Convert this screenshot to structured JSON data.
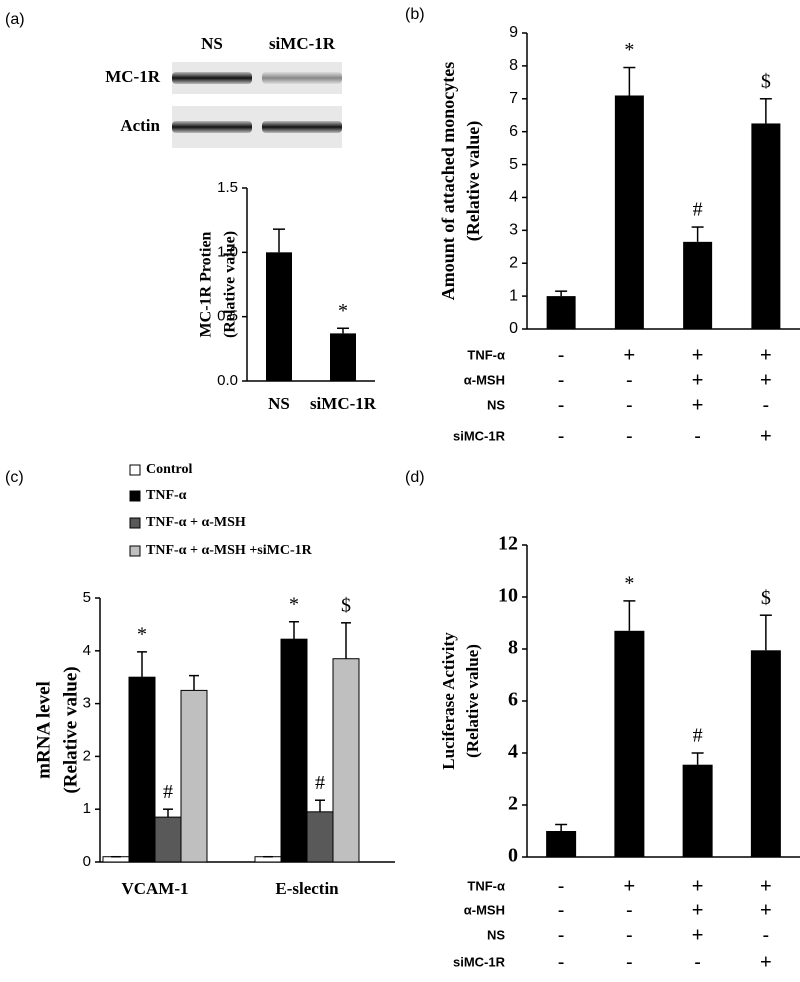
{
  "chart_data": [
    {
      "type": "bar",
      "panel_label": "(a)",
      "blot": {
        "lanes": [
          "NS",
          "siMC-1R"
        ],
        "bands": [
          "MC-1R",
          "Actin"
        ]
      },
      "y_label": [
        "MC-1R Protien",
        "(Relative value)"
      ],
      "categories": [
        "NS",
        "siMC-1R"
      ],
      "values": [
        1.0,
        0.37
      ],
      "errors": [
        0.18,
        0.04
      ],
      "annotations": [
        null,
        "*"
      ],
      "color": "#000000",
      "ylim": [
        0,
        1.5
      ],
      "yticks": [
        {
          "value": 0,
          "label": "0.0"
        },
        {
          "value": 0.5,
          "label": "0.5"
        },
        {
          "value": 1,
          "label": "1.0"
        },
        {
          "value": 1.5,
          "label": "1.5"
        }
      ]
    },
    {
      "type": "bar",
      "panel_label": "(b)",
      "y_label": [
        "Amount of attached monocytes",
        "(Relative value)"
      ],
      "values": [
        1.0,
        7.1,
        2.65,
        6.25
      ],
      "errors": [
        0.15,
        0.85,
        0.45,
        0.75
      ],
      "annotations": [
        null,
        "*",
        "#",
        "$"
      ],
      "conditions": [
        {
          "name": "TNF-α",
          "values": [
            "-",
            "+",
            "+",
            "+"
          ]
        },
        {
          "name": "α-MSH",
          "values": [
            "-",
            "-",
            "+",
            "+"
          ]
        },
        {
          "name": "NS",
          "values": [
            "-",
            "-",
            "+",
            "-"
          ]
        },
        {
          "name": "siMC-1R",
          "values": [
            "-",
            "-",
            "-",
            "+"
          ]
        }
      ],
      "color": "#000000",
      "ylim": [
        0,
        9
      ],
      "yticks": [
        0,
        1,
        2,
        3,
        4,
        5,
        6,
        7,
        8,
        9
      ]
    },
    {
      "type": "grouped_bar",
      "panel_label": "(c)",
      "y_label": [
        "mRNA level",
        "(Relative value)"
      ],
      "categories": [
        "VCAM-1",
        "E-slectin"
      ],
      "series": [
        {
          "name": "Control",
          "color": "#ffffff",
          "values": [
            0.1,
            0.1
          ],
          "errors": [
            0,
            0
          ],
          "annotations": [
            null,
            null
          ]
        },
        {
          "name": "TNF-α",
          "color": "#000000",
          "values": [
            3.5,
            4.22
          ],
          "errors": [
            0.48,
            0.33
          ],
          "annotations": [
            "*",
            "*"
          ]
        },
        {
          "name": "TNF-α + α-MSH",
          "color": "#595959",
          "values": [
            0.85,
            0.95
          ],
          "errors": [
            0.15,
            0.22
          ],
          "annotations": [
            "#",
            "#"
          ]
        },
        {
          "name": "TNF-α + α-MSH +siMC-1R",
          "color": "#bfbfbf",
          "values": [
            3.25,
            3.85
          ],
          "errors": [
            0.28,
            0.68
          ],
          "annotations": [
            null,
            "$"
          ]
        }
      ],
      "ylim": [
        0,
        5
      ],
      "yticks": [
        0,
        1,
        2,
        3,
        4,
        5
      ]
    },
    {
      "type": "bar",
      "panel_label": "(d)",
      "y_label": [
        "Luciferase Activity",
        "(Relative value)"
      ],
      "values": [
        1.0,
        8.7,
        3.55,
        7.95
      ],
      "errors": [
        0.25,
        1.15,
        0.45,
        1.35
      ],
      "annotations": [
        null,
        "*",
        "#",
        "$"
      ],
      "conditions": [
        {
          "name": "TNF-α",
          "values": [
            "-",
            "+",
            "+",
            "+"
          ]
        },
        {
          "name": "α-MSH",
          "values": [
            "-",
            "-",
            "+",
            "+"
          ]
        },
        {
          "name": "NS",
          "values": [
            "-",
            "-",
            "+",
            "-"
          ]
        },
        {
          "name": "siMC-1R",
          "values": [
            "-",
            "-",
            "-",
            "+"
          ]
        }
      ],
      "color": "#000000",
      "ylim": [
        0,
        12
      ],
      "yticks": [
        0,
        2,
        4,
        6,
        8,
        10,
        12
      ]
    }
  ]
}
